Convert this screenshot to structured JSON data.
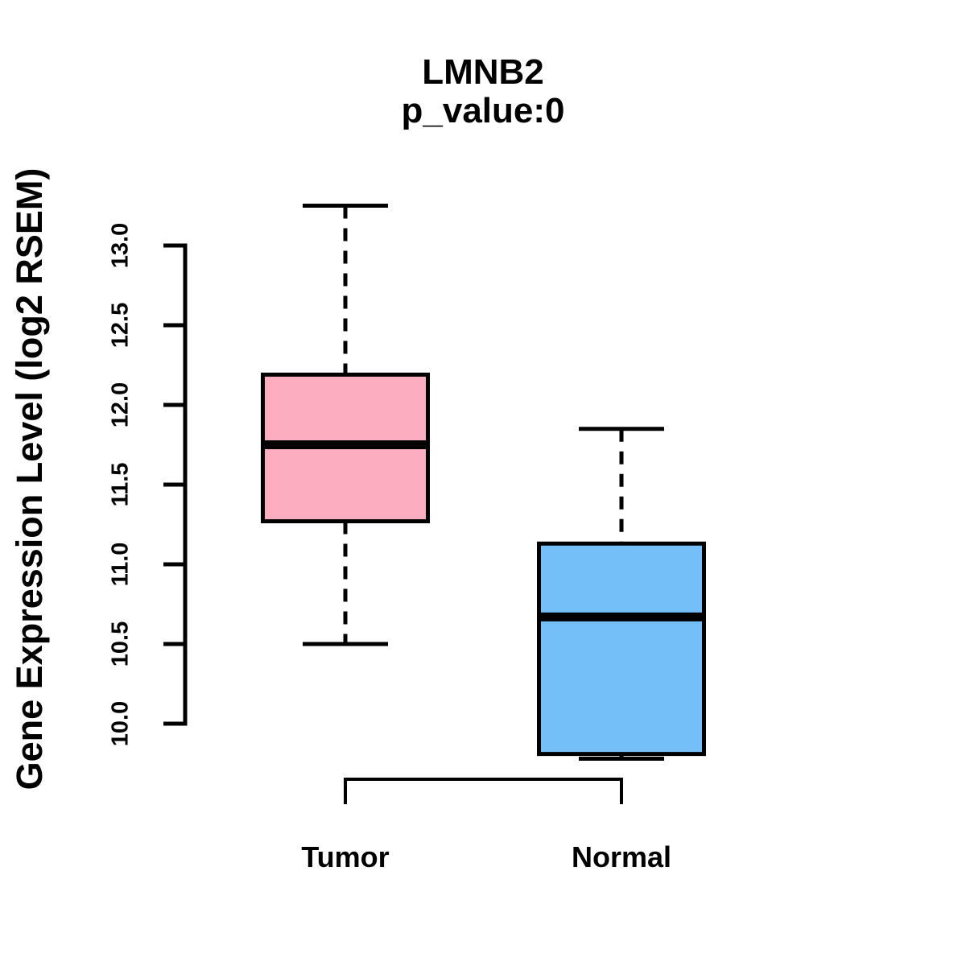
{
  "chart_data": {
    "type": "boxplot",
    "title": "LMNB2",
    "subtitle": "p_value:0",
    "ylabel": "Gene Expression Level (log2 RSEM)",
    "xlabel": "",
    "yticks": [
      10.0,
      10.5,
      11.0,
      11.5,
      12.0,
      12.5,
      13.0
    ],
    "ytick_labels": [
      "10.0",
      "10.5",
      "11.0",
      "11.5",
      "12.0",
      "12.5",
      "13.0"
    ],
    "ylim": [
      9.7,
      13.3
    ],
    "grid": false,
    "legend": "none",
    "line_color": "#000000",
    "groups": [
      {
        "label": "Tumor",
        "color": "#FCAEC0",
        "whisker_low": 10.5,
        "q1": 11.27,
        "median": 11.75,
        "q3": 12.19,
        "whisker_high": 13.25
      },
      {
        "label": "Normal",
        "color": "#74BFF7",
        "whisker_low": 9.78,
        "q1": 9.81,
        "median": 10.67,
        "q3": 11.13,
        "whisker_high": 11.85
      }
    ],
    "comparison_bracket": {
      "from": "Tumor",
      "to": "Normal"
    }
  }
}
